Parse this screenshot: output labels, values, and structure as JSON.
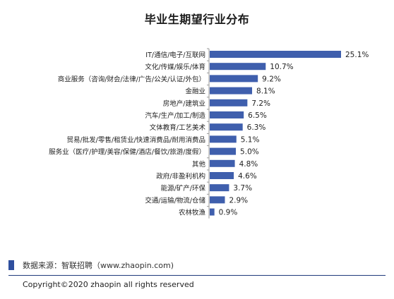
{
  "title": "毕业生期望行业分布",
  "chart_data": {
    "type": "bar",
    "orientation": "horizontal",
    "title": "毕业生期望行业分布",
    "xlabel": "",
    "ylabel": "",
    "xlim": [
      0,
      25.1
    ],
    "grid": false,
    "bar_color": "#3f5fad",
    "categories": [
      "IT/通信/电子/互联网",
      "文化/传媒/娱乐/体育",
      "商业服务（咨询/财会/法律/广告/公关/认证/外包）",
      "金融业",
      "房地产/建筑业",
      "汽车/生产/加工/制造",
      "文体教育/工艺美术",
      "贸易/批发/零售/租赁业/快速消费品/耐用消费品",
      "服务业（医疗/护理/美容/保健/酒店/餐饮/旅游/度假）",
      "其他",
      "政府/非盈利机构",
      "能源/矿产/环保",
      "交通/运输/物流/仓储",
      "农林牧渔"
    ],
    "values": [
      25.1,
      10.7,
      9.2,
      8.1,
      7.2,
      6.5,
      6.3,
      5.1,
      5.0,
      4.8,
      4.6,
      3.7,
      2.9,
      0.9
    ],
    "value_labels": [
      "25.1%",
      "10.7%",
      "9.2%",
      "8.1%",
      "7.2%",
      "6.5%",
      "6.3%",
      "5.1%",
      "5.0%",
      "4.8%",
      "4.6%",
      "3.7%",
      "2.9%",
      "0.9%"
    ]
  },
  "footer": {
    "source": "数据来源：智联招聘（www.zhaopin.com)",
    "copyright": "Copyright©2020 zhaopin all rights reserved"
  }
}
